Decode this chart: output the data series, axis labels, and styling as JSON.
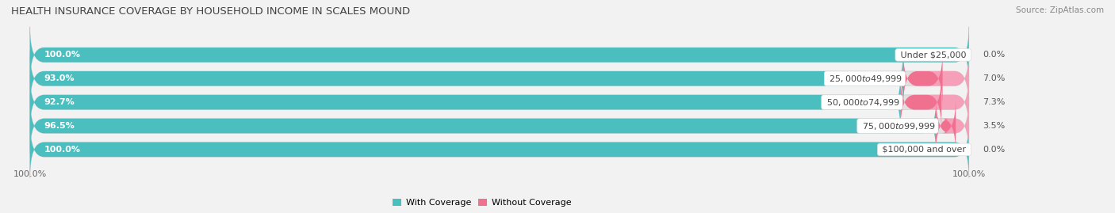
{
  "title": "HEALTH INSURANCE COVERAGE BY HOUSEHOLD INCOME IN SCALES MOUND",
  "source": "Source: ZipAtlas.com",
  "categories": [
    "Under $25,000",
    "$25,000 to $49,999",
    "$50,000 to $74,999",
    "$75,000 to $99,999",
    "$100,000 and over"
  ],
  "with_coverage": [
    100.0,
    93.0,
    92.7,
    96.5,
    100.0
  ],
  "without_coverage": [
    0.0,
    7.0,
    7.3,
    3.5,
    0.0
  ],
  "color_with": "#4bbfbf",
  "color_without": "#f07090",
  "color_without_light": "#f5a0b8",
  "background_color": "#f2f2f2",
  "bar_bg_color": "#e0e0e0",
  "title_fontsize": 9.5,
  "label_fontsize": 8,
  "tick_fontsize": 8,
  "legend_fontsize": 8,
  "bar_height": 0.62,
  "bar_gap": 0.38,
  "xlim_left": -5,
  "xlim_right": 115,
  "total_bar_width": 100
}
